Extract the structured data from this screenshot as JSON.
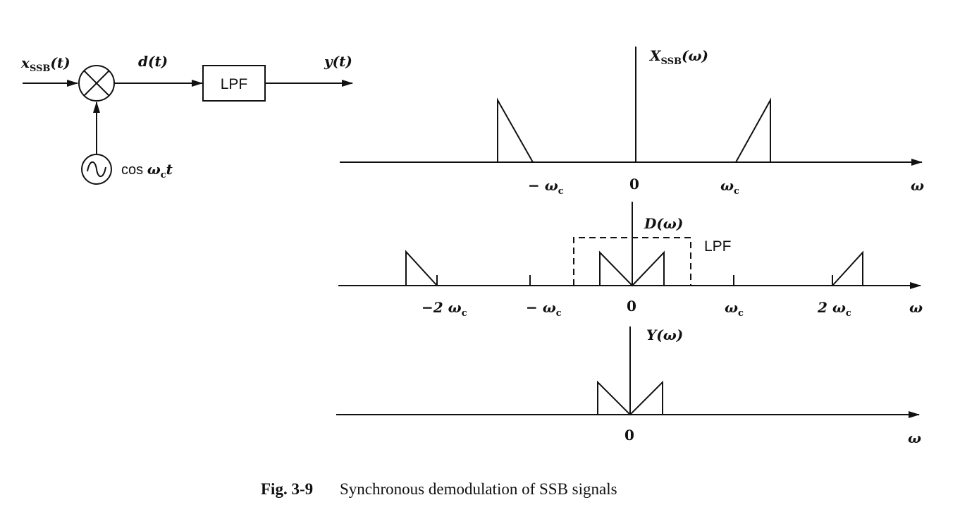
{
  "block_diagram": {
    "input_main": "x",
    "input_sub": "SSB",
    "input_arg": "(t)",
    "mixer_output": "d(t)",
    "filter_label": "LPF",
    "output": "y(t)",
    "oscillator_text": "cos ",
    "oscillator_omega": "ω",
    "oscillator_sub": "c",
    "oscillator_t": "t"
  },
  "panels": {
    "x_spectrum": {
      "title_main": "X",
      "title_sub": "SSB",
      "title_arg": "(ω)",
      "tick_neg_wc": "− ω",
      "tick_zero": "0",
      "tick_wc": "ω",
      "axis_var": "ω"
    },
    "d_spectrum": {
      "title": "D(ω)",
      "lpf_label": "LPF",
      "tick_neg_2wc": "−2 ω",
      "tick_neg_wc": "− ω",
      "tick_zero": "0",
      "tick_wc": "ω",
      "tick_2wc": "2 ω",
      "axis_var": "ω"
    },
    "y_spectrum": {
      "title": "Y(ω)",
      "tick_zero": "0",
      "axis_var": "ω"
    },
    "subscript_c": "c"
  },
  "caption": {
    "number": "Fig. 3-9",
    "text": "Synchronous demodulation of SSB signals"
  }
}
